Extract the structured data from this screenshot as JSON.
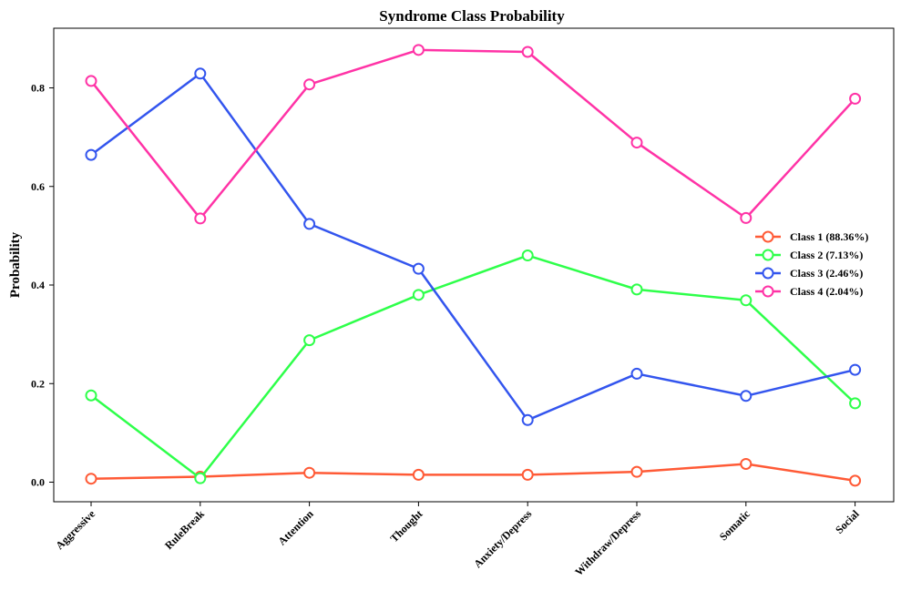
{
  "chart_data": {
    "type": "line",
    "title": "Syndrome Class Probability",
    "xlabel": "",
    "ylabel": "Probability",
    "categories": [
      "Aggressive",
      "RuleBreak",
      "Attention",
      "Thought",
      "Anxiety/Depress",
      "Withdraw/Depress",
      "Somatic",
      "Social"
    ],
    "ylim": [
      -0.04,
      0.92
    ],
    "yticks": [
      0.0,
      0.2,
      0.4,
      0.6,
      0.8
    ],
    "ytick_labels": [
      "0.0",
      "0.2",
      "0.4",
      "0.6",
      "0.8"
    ],
    "grid": false,
    "legend_position": "center-right",
    "marker": "hollow-circle",
    "series": [
      {
        "name": "Class 1 (88.36%)",
        "color": "#ff5a36",
        "values": [
          0.007,
          0.011,
          0.019,
          0.015,
          0.015,
          0.021,
          0.037,
          0.003
        ]
      },
      {
        "name": "Class 2 (7.13%)",
        "color": "#2eff4a",
        "values": [
          0.176,
          0.008,
          0.288,
          0.38,
          0.46,
          0.391,
          0.369,
          0.16
        ]
      },
      {
        "name": "Class 3 (2.46%)",
        "color": "#3355ee",
        "values": [
          0.664,
          0.829,
          0.524,
          0.433,
          0.126,
          0.22,
          0.175,
          0.228
        ]
      },
      {
        "name": "Class 4 (2.04%)",
        "color": "#ff33a6",
        "values": [
          0.814,
          0.535,
          0.807,
          0.877,
          0.873,
          0.689,
          0.536,
          0.778
        ]
      }
    ]
  }
}
